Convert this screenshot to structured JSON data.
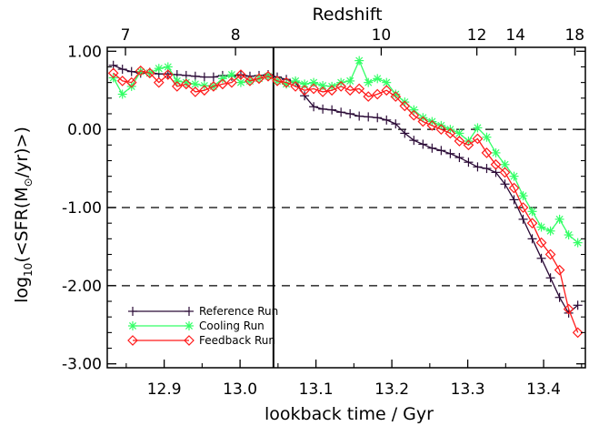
{
  "chart_data": {
    "type": "line",
    "top_axis_title": "Redshift",
    "xlabel": "lookback time / Gyr",
    "ylabel_parts": {
      "prefix": "log",
      "sub": "10",
      "mid": "(<SFR(M",
      "sun": "⊙",
      "suffix": "/yr)>)"
    },
    "xlim": [
      12.825,
      13.455
    ],
    "ylim": [
      -3.05,
      1.05
    ],
    "x_ticks": [
      12.9,
      13.0,
      13.1,
      13.2,
      13.3,
      13.4
    ],
    "x_tick_labels": [
      "12.9",
      "13.0",
      "13.1",
      "13.2",
      "13.3",
      "13.4"
    ],
    "y_ticks": [
      1.0,
      0.0,
      -1.0,
      -2.0,
      -3.0
    ],
    "y_tick_labels": [
      "1.00",
      "0.00",
      "-1.00",
      "-2.00",
      "-3.00"
    ],
    "top_ticks": [
      {
        "label": "7",
        "x": 12.849
      },
      {
        "label": "8",
        "x": 12.994
      },
      {
        "label": "10",
        "x": 13.186
      },
      {
        "label": "12",
        "x": 13.312
      },
      {
        "label": "14",
        "x": 13.363
      },
      {
        "label": "18",
        "x": 13.441
      }
    ],
    "dashed_lines": [
      0.0,
      -1.0,
      -2.0
    ],
    "vertical_line_x": 13.044,
    "legend_position": "bottom-left",
    "series": [
      {
        "name": "Reference Run",
        "color": "#2a0a36",
        "marker": "plus",
        "x": [
          12.833,
          12.845,
          12.857,
          12.869,
          12.881,
          12.893,
          12.905,
          12.917,
          12.929,
          12.941,
          12.953,
          12.965,
          12.977,
          12.989,
          13.001,
          13.013,
          13.025,
          13.037,
          13.049,
          13.061,
          13.073,
          13.085,
          13.097,
          13.109,
          13.121,
          13.133,
          13.145,
          13.157,
          13.169,
          13.181,
          13.193,
          13.205,
          13.217,
          13.229,
          13.241,
          13.253,
          13.265,
          13.277,
          13.289,
          13.301,
          13.313,
          13.325,
          13.337,
          13.349,
          13.361,
          13.373,
          13.385,
          13.397,
          13.409,
          13.421,
          13.433,
          13.445
        ],
        "y": [
          0.82,
          0.77,
          0.74,
          0.72,
          0.73,
          0.71,
          0.71,
          0.7,
          0.69,
          0.68,
          0.67,
          0.67,
          0.69,
          0.68,
          0.7,
          0.68,
          0.69,
          0.7,
          0.67,
          0.64,
          0.6,
          0.43,
          0.29,
          0.26,
          0.25,
          0.22,
          0.2,
          0.17,
          0.16,
          0.15,
          0.12,
          0.07,
          -0.05,
          -0.14,
          -0.19,
          -0.24,
          -0.27,
          -0.31,
          -0.36,
          -0.42,
          -0.48,
          -0.5,
          -0.55,
          -0.7,
          -0.9,
          -1.15,
          -1.4,
          -1.65,
          -1.9,
          -2.15,
          -2.35,
          -2.25
        ]
      },
      {
        "name": "Cooling Run",
        "color": "#33ff66",
        "marker": "star",
        "x": [
          12.833,
          12.845,
          12.857,
          12.869,
          12.881,
          12.893,
          12.905,
          12.917,
          12.929,
          12.941,
          12.953,
          12.965,
          12.977,
          12.989,
          13.001,
          13.013,
          13.025,
          13.037,
          13.049,
          13.061,
          13.073,
          13.085,
          13.097,
          13.109,
          13.121,
          13.133,
          13.145,
          13.157,
          13.169,
          13.181,
          13.193,
          13.205,
          13.217,
          13.229,
          13.241,
          13.253,
          13.265,
          13.277,
          13.289,
          13.301,
          13.313,
          13.325,
          13.337,
          13.349,
          13.361,
          13.373,
          13.385,
          13.397,
          13.409,
          13.421,
          13.433,
          13.445
        ],
        "y": [
          0.66,
          0.45,
          0.55,
          0.74,
          0.72,
          0.78,
          0.8,
          0.62,
          0.6,
          0.58,
          0.56,
          0.55,
          0.65,
          0.7,
          0.6,
          0.62,
          0.65,
          0.68,
          0.62,
          0.58,
          0.62,
          0.58,
          0.6,
          0.56,
          0.55,
          0.6,
          0.62,
          0.88,
          0.6,
          0.65,
          0.6,
          0.45,
          0.35,
          0.25,
          0.15,
          0.1,
          0.05,
          0.0,
          -0.05,
          -0.15,
          0.02,
          -0.1,
          -0.3,
          -0.45,
          -0.6,
          -0.85,
          -1.05,
          -1.25,
          -1.3,
          -1.15,
          -1.35,
          -1.45
        ]
      },
      {
        "name": "Feedback Run",
        "color": "#ff1a1a",
        "marker": "diamond",
        "x": [
          12.833,
          12.845,
          12.857,
          12.869,
          12.881,
          12.893,
          12.905,
          12.917,
          12.929,
          12.941,
          12.953,
          12.965,
          12.977,
          12.989,
          13.001,
          13.013,
          13.025,
          13.037,
          13.049,
          13.061,
          13.073,
          13.085,
          13.097,
          13.109,
          13.121,
          13.133,
          13.145,
          13.157,
          13.169,
          13.181,
          13.193,
          13.205,
          13.217,
          13.229,
          13.241,
          13.253,
          13.265,
          13.277,
          13.289,
          13.301,
          13.313,
          13.325,
          13.337,
          13.349,
          13.361,
          13.373,
          13.385,
          13.397,
          13.409,
          13.421,
          13.433,
          13.445
        ],
        "y": [
          0.72,
          0.62,
          0.6,
          0.75,
          0.72,
          0.6,
          0.7,
          0.55,
          0.58,
          0.48,
          0.5,
          0.55,
          0.58,
          0.6,
          0.7,
          0.62,
          0.65,
          0.68,
          0.62,
          0.6,
          0.55,
          0.5,
          0.52,
          0.48,
          0.5,
          0.55,
          0.5,
          0.52,
          0.42,
          0.45,
          0.5,
          0.42,
          0.3,
          0.18,
          0.1,
          0.05,
          0.0,
          -0.05,
          -0.15,
          -0.2,
          -0.12,
          -0.3,
          -0.45,
          -0.55,
          -0.75,
          -1.0,
          -1.2,
          -1.45,
          -1.6,
          -1.8,
          -2.3,
          -2.6
        ]
      }
    ]
  }
}
